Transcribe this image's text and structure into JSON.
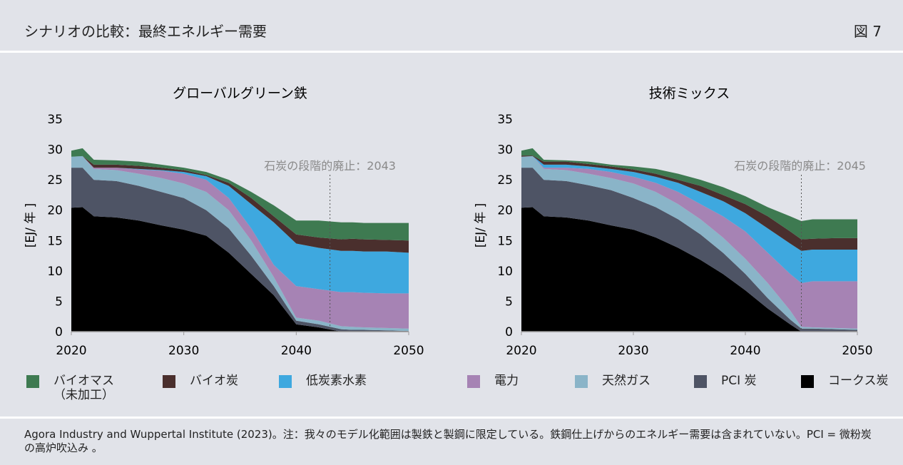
{
  "header": {
    "title": "シナリオの比較：最終エネルギー需要",
    "figure": "図 7"
  },
  "footer": "Agora Industry and Wuppertal Institute (2023)。注：我々のモデル化範囲は製鉄と製鋼に限定している。鉄鋼仕上げからのエネルギー需要は含まれていない。PCI = 微粉炭の高炉吹込み 。",
  "chart_data": [
    {
      "type": "stacked_area",
      "title": "グローバルグリーン鉄",
      "y_label": "[EJ/ 年 ]",
      "annotation": {
        "text": "石炭の段階的廃止：2043",
        "x": 2043
      },
      "x": [
        2020,
        2021,
        2022,
        2024,
        2026,
        2028,
        2030,
        2032,
        2034,
        2036,
        2038,
        2040,
        2042,
        2044,
        2045,
        2046,
        2048,
        2050
      ],
      "xlim": [
        2020,
        2050
      ],
      "xticks": [
        2020,
        2030,
        2040,
        2050
      ],
      "ylim": [
        0,
        35
      ],
      "yticks": [
        0,
        5,
        10,
        15,
        20,
        25,
        30,
        35
      ],
      "series": [
        {
          "name": "コークス炭",
          "color": "#000000",
          "values": [
            20.4,
            20.5,
            19,
            18.8,
            18.3,
            17.5,
            16.8,
            15.8,
            13,
            9.5,
            6,
            1.2,
            0.7,
            0,
            0,
            0,
            0,
            0
          ]
        },
        {
          "name": "PCI 炭",
          "color": "#4e5465",
          "values": [
            6.6,
            6.5,
            6,
            6,
            5.7,
            5.5,
            5.2,
            4.2,
            4,
            3,
            1.5,
            0.6,
            0.5,
            0.4,
            0.3,
            0.3,
            0.2,
            0.1
          ]
        },
        {
          "name": "天然ガス",
          "color": "#8ab4c8",
          "values": [
            1.8,
            1.9,
            1.8,
            1.8,
            2,
            2.3,
            2.4,
            3,
            3,
            2.5,
            1.5,
            0.5,
            0.6,
            0.5,
            0.5,
            0.4,
            0.4,
            0.4
          ]
        },
        {
          "name": "電力",
          "color": "#a683b4",
          "values": [
            0,
            0,
            0.2,
            0.4,
            0.7,
            1.2,
            1.6,
            2,
            2,
            2,
            2,
            5.2,
            5.2,
            5.6,
            5.7,
            5.7,
            5.7,
            5.8
          ]
        },
        {
          "name": "低炭素水素",
          "color": "#3ea8df",
          "values": [
            0,
            0,
            0,
            0,
            0.1,
            0.1,
            0.3,
            0.6,
            2,
            4,
            7,
            7,
            6.8,
            6.8,
            6.8,
            6.8,
            6.9,
            6.7
          ]
        },
        {
          "name": "バイオ炭",
          "color": "#4a2f2d",
          "values": [
            0,
            0,
            0.5,
            0.5,
            0.5,
            0.4,
            0.3,
            0.2,
            0.5,
            1,
            1,
            1.5,
            1.7,
            1.9,
            2,
            2,
            1.9,
            2
          ]
        },
        {
          "name": "バイオマス\n（未加工）",
          "color": "#3e7a51",
          "values": [
            1,
            1.3,
            0.8,
            0.7,
            0.7,
            0.5,
            0.4,
            0.5,
            0.5,
            1,
            1.8,
            2.3,
            2.8,
            2.8,
            2.7,
            2.7,
            2.8,
            2.9
          ]
        }
      ]
    },
    {
      "type": "stacked_area",
      "title": "技術ミックス",
      "y_label": "[EJ/ 年 ]",
      "annotation": {
        "text": "石炭の段階的廃止：2045",
        "x": 2045
      },
      "x": [
        2020,
        2021,
        2022,
        2024,
        2026,
        2028,
        2030,
        2032,
        2034,
        2036,
        2038,
        2040,
        2042,
        2044,
        2045,
        2046,
        2048,
        2050
      ],
      "xlim": [
        2020,
        2050
      ],
      "xticks": [
        2020,
        2030,
        2040,
        2050
      ],
      "ylim": [
        0,
        35
      ],
      "yticks": [
        0,
        5,
        10,
        15,
        20,
        25,
        30,
        35
      ],
      "series": [
        {
          "name": "コークス炭",
          "color": "#000000",
          "values": [
            20.4,
            20.5,
            19,
            18.8,
            18.3,
            17.5,
            16.8,
            15.5,
            13.8,
            11.8,
            9.5,
            6.8,
            3.8,
            1.2,
            0,
            0,
            0,
            0
          ]
        },
        {
          "name": "PCI 炭",
          "color": "#4e5465",
          "values": [
            6.6,
            6.5,
            6,
            6,
            5.8,
            5.8,
            5.2,
            5,
            4.7,
            4.2,
            3.5,
            2.7,
            1.7,
            0.8,
            0.5,
            0.5,
            0.4,
            0.3
          ]
        },
        {
          "name": "天然ガス",
          "color": "#8ab4c8",
          "values": [
            1.8,
            1.9,
            1.8,
            1.8,
            1.9,
            2,
            2.4,
            2.5,
            2.5,
            2.5,
            2.5,
            2.5,
            2.5,
            1.5,
            0.3,
            0.2,
            0.2,
            0.2
          ]
        },
        {
          "name": "電力",
          "color": "#a683b4",
          "values": [
            0,
            0,
            0.2,
            0.4,
            0.8,
            1,
            1.1,
            1.5,
            2,
            2.5,
            3.5,
            4.5,
            5,
            6,
            7.2,
            7.6,
            7.7,
            7.8
          ]
        },
        {
          "name": "低炭素水素",
          "color": "#3ea8df",
          "values": [
            0,
            0,
            0.5,
            0.5,
            0.4,
            0.5,
            0.8,
            1,
            1.5,
            2,
            2.5,
            3,
            4,
            5,
            5.3,
            5.2,
            5.2,
            5.2
          ]
        },
        {
          "name": "バイオ炭",
          "color": "#4a2f2d",
          "values": [
            0.2,
            0.1,
            0.5,
            0.5,
            0.4,
            0.4,
            0.4,
            0.5,
            0.5,
            1,
            1,
            1.5,
            2,
            2,
            1.9,
            1.8,
            1.9,
            1.9
          ]
        },
        {
          "name": "バイオマス\n（未加工）",
          "color": "#3e7a51",
          "values": [
            0.8,
            1.2,
            0.3,
            0.2,
            0.4,
            0.3,
            0.5,
            0.8,
            1,
            1,
            1.3,
            1.3,
            1.5,
            2.5,
            3,
            3.2,
            3.1,
            3.1
          ]
        }
      ]
    }
  ]
}
